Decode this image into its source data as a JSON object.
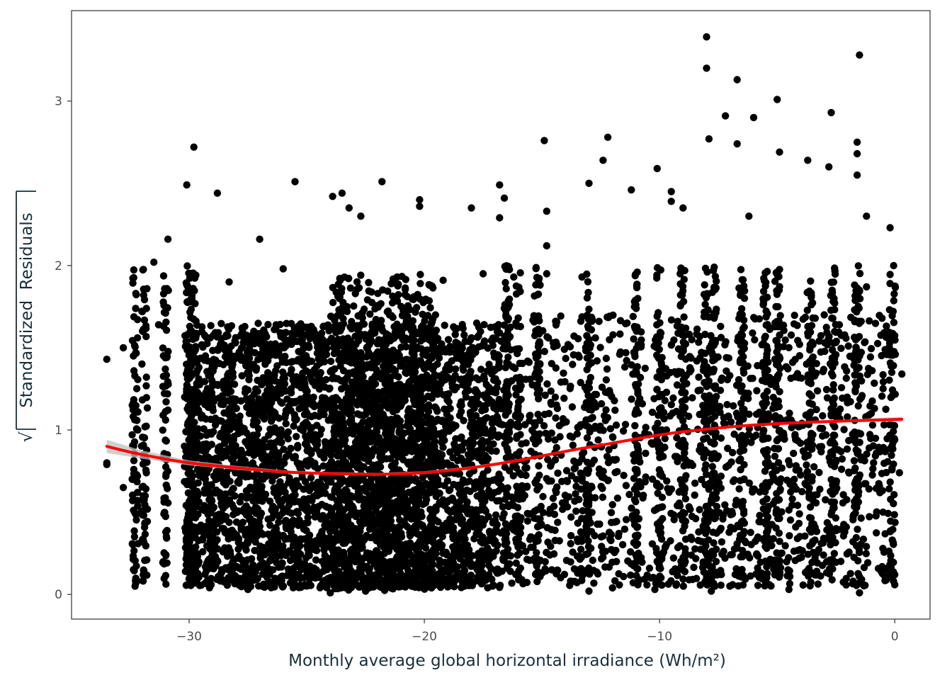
{
  "chart_data": {
    "type": "scatter",
    "title": "",
    "xlabel": "Monthly average global horizontal irradiance (Wh/m²)",
    "ylabel": "Standardized  Residuals",
    "xlim": [
      -35,
      1.5
    ],
    "ylim": [
      -0.15,
      3.55
    ],
    "x_ticks": [
      -30,
      -20,
      -10,
      0
    ],
    "x_tick_labels": [
      "−30",
      "−20",
      "−10",
      "0"
    ],
    "y_ticks": [
      0,
      1,
      2,
      3
    ],
    "y_tick_labels": [
      "0",
      "1",
      "2",
      "3"
    ],
    "grid": false,
    "legend": "none",
    "point_color": "#000000",
    "series": [
      {
        "type": "scatter",
        "points": [
          [
            -33.5,
            1.43
          ],
          [
            -33.5,
            0.8
          ],
          [
            -33.5,
            0.79
          ],
          [
            -32.8,
            1.5
          ],
          [
            -32.8,
            0.65
          ],
          [
            -31.5,
            2.02
          ],
          [
            -31.3,
            1.64
          ],
          [
            -30.9,
            2.16
          ],
          [
            -29.8,
            2.72
          ],
          [
            -30.1,
            2.49
          ],
          [
            -28.8,
            2.44
          ],
          [
            -28.3,
            1.9
          ],
          [
            -25.5,
            2.51
          ],
          [
            -23.9,
            2.42
          ],
          [
            -23.5,
            2.44
          ],
          [
            -23.2,
            2.35
          ],
          [
            -22.7,
            2.3
          ],
          [
            -21.8,
            2.51
          ],
          [
            -20.2,
            2.4
          ],
          [
            -20.2,
            2.36
          ],
          [
            -18.0,
            2.35
          ],
          [
            -16.8,
            2.49
          ],
          [
            -16.6,
            2.41
          ],
          [
            -16.8,
            2.29
          ],
          [
            -14.9,
            2.76
          ],
          [
            -14.8,
            2.33
          ],
          [
            -14.8,
            2.12
          ],
          [
            -14.8,
            1.95
          ],
          [
            -13.0,
            2.5
          ],
          [
            -12.4,
            2.64
          ],
          [
            -12.2,
            2.78
          ],
          [
            -11.2,
            2.46
          ],
          [
            -10.1,
            2.59
          ],
          [
            -9.5,
            2.45
          ],
          [
            -9.5,
            2.39
          ],
          [
            -8.0,
            3.39
          ],
          [
            -8.0,
            3.2
          ],
          [
            -7.9,
            2.77
          ],
          [
            -7.2,
            2.91
          ],
          [
            -6.7,
            3.13
          ],
          [
            -6.7,
            2.74
          ],
          [
            -6.0,
            2.9
          ],
          [
            -5.0,
            3.01
          ],
          [
            -4.9,
            2.69
          ],
          [
            -3.7,
            2.64
          ],
          [
            -2.7,
            2.93
          ],
          [
            -2.8,
            2.6
          ],
          [
            -1.5,
            3.28
          ],
          [
            -1.6,
            2.75
          ],
          [
            -1.6,
            2.68
          ],
          [
            -1.6,
            2.55
          ],
          [
            -1.2,
            2.3
          ],
          [
            -0.2,
            2.23
          ],
          [
            0.3,
            1.34
          ],
          [
            0.2,
            0.74
          ],
          [
            0.0,
            0.12
          ],
          [
            -1.5,
            0.01
          ],
          [
            -4.5,
            0.03
          ],
          [
            -7.8,
            0.02
          ],
          [
            -10.2,
            0.03
          ],
          [
            -12.0,
            0.04
          ],
          [
            -13.0,
            0.02
          ],
          [
            -24.0,
            0.01
          ],
          [
            -22.5,
            0.02
          ],
          [
            -27.5,
            0.03
          ],
          [
            -32.3,
            0.05
          ],
          [
            -1.2,
            1.87
          ],
          [
            -1.0,
            1.1
          ],
          [
            -0.9,
            0.8
          ],
          [
            -0.5,
            0.5
          ],
          [
            -6.2,
            2.3
          ],
          [
            -9.0,
            2.35
          ],
          [
            -13.3,
            1.93
          ],
          [
            -16.2,
            1.93
          ],
          [
            -17.5,
            1.95
          ],
          [
            -19.2,
            1.91
          ],
          [
            -27.0,
            2.16
          ],
          [
            -26.0,
            1.98
          ],
          [
            -2.5,
            0.4
          ],
          [
            -3.0,
            1.7
          ]
        ],
        "dense_bands": [
          {
            "x": [
              -30.2,
              -16.8
            ],
            "y": [
              0.04,
              1.65
            ],
            "density": 3500
          },
          {
            "x": [
              -16.8,
              -0.2
            ],
            "y": [
              0.05,
              1.7
            ],
            "density": 1400
          },
          {
            "x": [
              -24.0,
              -19.5
            ],
            "y": [
              0.02,
              1.95
            ],
            "density": 800
          }
        ],
        "column_xs": [
          -32.3,
          -31.9,
          -31.0,
          -30.0,
          -29.8,
          -16.5,
          -16.0,
          -15.2,
          -13.0,
          -11.0,
          -10.0,
          -9.0,
          -8.0,
          -7.7,
          -6.5,
          -5.5,
          -5.0,
          -3.6,
          -2.6,
          -1.6,
          -0.1
        ]
      },
      {
        "name": "",
        "type": "line",
        "color": "#ff0000",
        "x": [
          -33.5,
          -32.0,
          -30.0,
          -28.0,
          -26.0,
          -24.0,
          -22.0,
          -20.0,
          -18.0,
          -16.0,
          -14.0,
          -12.0,
          -10.0,
          -8.0,
          -6.0,
          -4.0,
          -2.0,
          0.3
        ],
        "y": [
          0.9,
          0.85,
          0.8,
          0.77,
          0.745,
          0.735,
          0.73,
          0.74,
          0.77,
          0.815,
          0.87,
          0.92,
          0.97,
          1.005,
          1.03,
          1.045,
          1.055,
          1.065
        ],
        "ci_upper": [
          0.94,
          0.875,
          0.815,
          0.782,
          0.755,
          0.744,
          0.739,
          0.749,
          0.779,
          0.824,
          0.878,
          0.928,
          0.978,
          1.013,
          1.038,
          1.054,
          1.064,
          1.08
        ],
        "ci_lower": [
          0.86,
          0.825,
          0.785,
          0.758,
          0.735,
          0.726,
          0.721,
          0.731,
          0.761,
          0.806,
          0.862,
          0.912,
          0.962,
          0.997,
          1.022,
          1.036,
          1.046,
          1.05
        ]
      }
    ]
  }
}
